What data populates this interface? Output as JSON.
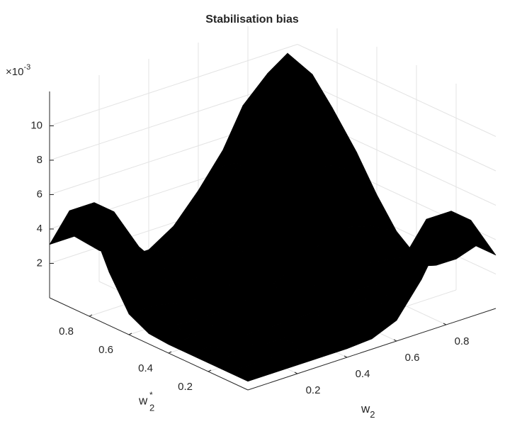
{
  "chart_data": {
    "type": "surface",
    "title": "Stabilisation bias",
    "xlabel": [
      "w",
      "2"
    ],
    "ylabel": [
      "w",
      "*",
      "2"
    ],
    "zscale_label": [
      "×10",
      "-3"
    ],
    "x": [
      0,
      0.1,
      0.2,
      0.3,
      0.4,
      0.5,
      0.6,
      0.7,
      0.8,
      0.9,
      1
    ],
    "y": [
      0,
      0.1,
      0.2,
      0.3,
      0.4,
      0.5,
      0.6,
      0.7,
      0.8,
      0.9,
      1
    ],
    "z": [
      [
        0.0005,
        0.0005,
        0.0005,
        0.0005,
        0.0005,
        0.0006,
        0.0012,
        0.0031,
        0.0056,
        0.0056,
        0.0031
      ],
      [
        0.0005,
        0.0005,
        0.0005,
        0.0005,
        0.0005,
        0.0006,
        0.0012,
        0.0031,
        0.0056,
        0.0056,
        0.0031
      ],
      [
        0.0005,
        0.0005,
        0.0005,
        0.0005,
        0.0005,
        0.0006,
        0.0009,
        0.0018,
        0.0031,
        0.0031,
        0.0018
      ],
      [
        0.0005,
        0.0005,
        0.0005,
        0.0005,
        0.0005,
        0.0005,
        0.0007,
        0.001,
        0.0014,
        0.0013,
        0.0009
      ],
      [
        0.0005,
        0.0005,
        0.0005,
        0.0005,
        0.0006,
        0.0007,
        0.0009,
        0.0012,
        0.0014,
        0.0012,
        0.0009
      ],
      [
        0.0006,
        0.0006,
        0.0005,
        0.0005,
        0.0007,
        0.0011,
        0.0018,
        0.0026,
        0.003,
        0.0026,
        0.0018
      ],
      [
        0.0012,
        0.0012,
        0.0009,
        0.0007,
        0.0009,
        0.0018,
        0.0034,
        0.0053,
        0.0061,
        0.0053,
        0.0034
      ],
      [
        0.0031,
        0.0031,
        0.0018,
        0.001,
        0.0012,
        0.0026,
        0.0053,
        0.0084,
        0.0098,
        0.0084,
        0.0053
      ],
      [
        0.0056,
        0.0056,
        0.0031,
        0.0014,
        0.0014,
        0.003,
        0.0061,
        0.0098,
        0.0115,
        0.0098,
        0.0061
      ],
      [
        0.0056,
        0.0056,
        0.0031,
        0.0013,
        0.0012,
        0.0026,
        0.0053,
        0.0084,
        0.0098,
        0.0084,
        0.0053
      ],
      [
        0.0031,
        0.0031,
        0.0018,
        0.0009,
        0.0009,
        0.0018,
        0.0034,
        0.0053,
        0.0061,
        0.0053,
        0.0034
      ]
    ],
    "xlim": [
      0,
      1
    ],
    "ylim": [
      0,
      1
    ],
    "zlim": [
      0,
      0.012
    ],
    "xticks": [
      0.2,
      0.4,
      0.6,
      0.8
    ],
    "yticks": [
      0.2,
      0.4,
      0.6,
      0.8
    ],
    "zticks": [
      {
        "value": 0.002,
        "label": "2"
      },
      {
        "value": 0.004,
        "label": "4"
      },
      {
        "value": 0.006,
        "label": "6"
      },
      {
        "value": 0.008,
        "label": "8"
      },
      {
        "value": 0.01,
        "label": "10"
      }
    ],
    "colormap": "parula",
    "edge_color": "#000000",
    "grid": true
  }
}
